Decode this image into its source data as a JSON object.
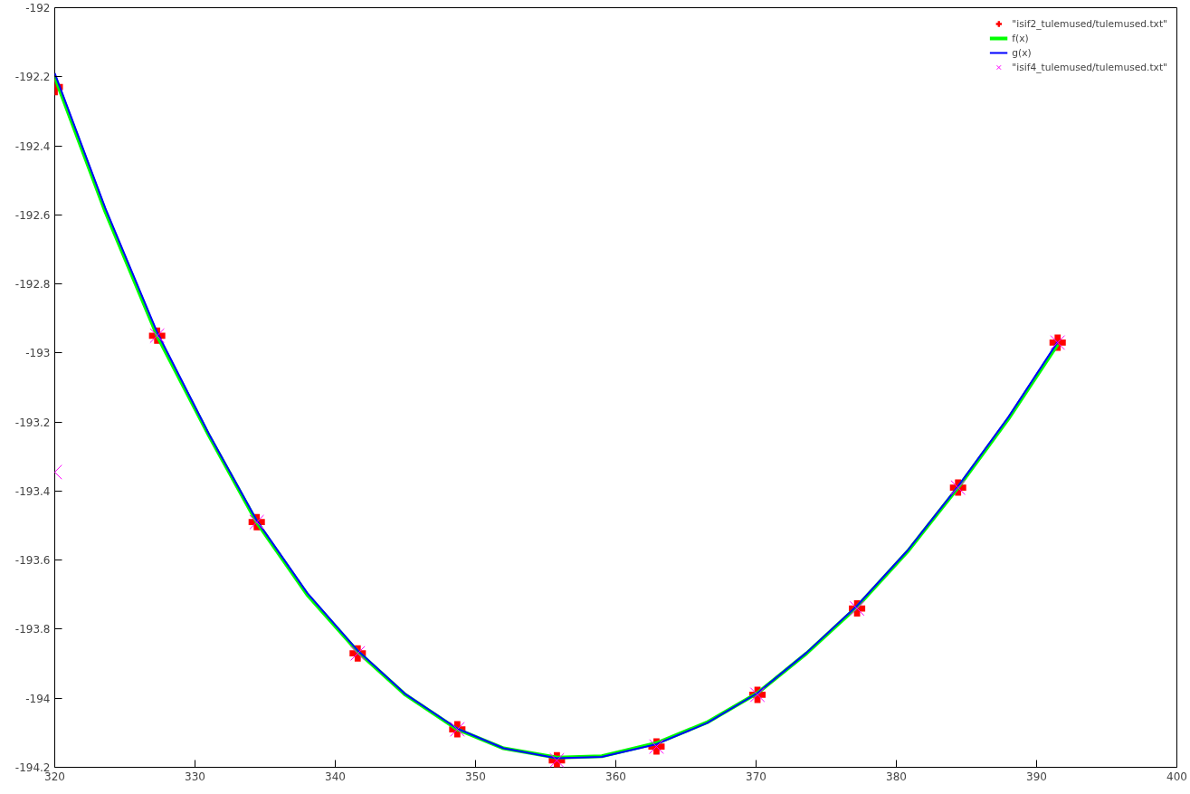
{
  "chart_data": {
    "type": "scatter",
    "xlim": [
      320,
      400
    ],
    "ylim": [
      -194.2,
      -192
    ],
    "xticks": [
      320,
      330,
      340,
      350,
      360,
      370,
      380,
      390,
      400
    ],
    "yticks": [
      -194.2,
      -194,
      -193.8,
      -193.6,
      -193.4,
      -193.2,
      -193,
      -192.8,
      -192.6,
      -192.4,
      -192.2,
      -192
    ],
    "grid": false,
    "legend": "top right",
    "series": [
      {
        "name": "\"isif2_tulemused/tulemused.txt\"",
        "marker": "cross",
        "color": "#ff0000",
        "x": [
          320.0,
          327.3,
          334.4,
          341.6,
          348.7,
          355.8,
          362.9,
          370.1,
          377.2,
          384.4,
          391.5
        ],
        "values": [
          -192.23,
          -192.95,
          -193.49,
          -193.87,
          -194.09,
          -194.18,
          -194.14,
          -193.99,
          -193.74,
          -193.39,
          -192.97
        ]
      },
      {
        "name": "f(x)",
        "type": "line",
        "line_style": "solid",
        "color": "#00ff00",
        "x": [
          320,
          323.6,
          327.3,
          331,
          334.4,
          338,
          341.6,
          345,
          348.7,
          352,
          355.8,
          359,
          362.9,
          366.5,
          370.1,
          373.6,
          377.2,
          380.8,
          384.4,
          388,
          391.5
        ],
        "values": [
          -192.2,
          -192.59,
          -192.95,
          -193.24,
          -193.49,
          -193.7,
          -193.865,
          -193.99,
          -194.09,
          -194.145,
          -194.172,
          -194.168,
          -194.13,
          -194.07,
          -193.985,
          -193.87,
          -193.735,
          -193.575,
          -193.39,
          -193.19,
          -192.975
        ]
      },
      {
        "name": "g(x)",
        "type": "line",
        "line_style": "solid",
        "color": "#0000ff",
        "x": [
          320,
          323.6,
          327.3,
          331,
          334.4,
          338,
          341.6,
          345,
          348.7,
          352,
          355.8,
          359,
          362.9,
          366.5,
          370.1,
          373.6,
          377.2,
          380.8,
          384.4,
          388,
          391.5
        ],
        "values": [
          -192.19,
          -192.58,
          -192.94,
          -193.235,
          -193.485,
          -193.695,
          -193.862,
          -193.988,
          -194.088,
          -194.145,
          -194.174,
          -194.17,
          -194.133,
          -194.072,
          -193.985,
          -193.868,
          -193.732,
          -193.572,
          -193.386,
          -193.185,
          -192.968
        ]
      },
      {
        "name": "\"isif4_tulemused/tulemused.txt\"",
        "marker": "x",
        "color": "#ff00ff",
        "x": [
          320.0,
          327.3,
          334.4,
          341.6,
          348.7,
          355.8,
          362.9,
          370.1,
          377.2,
          384.4,
          391.5
        ],
        "values": [
          -193.345,
          -192.95,
          -193.49,
          -193.87,
          -194.09,
          -194.18,
          -194.14,
          -193.99,
          -193.74,
          -193.39,
          -192.97
        ]
      }
    ]
  }
}
